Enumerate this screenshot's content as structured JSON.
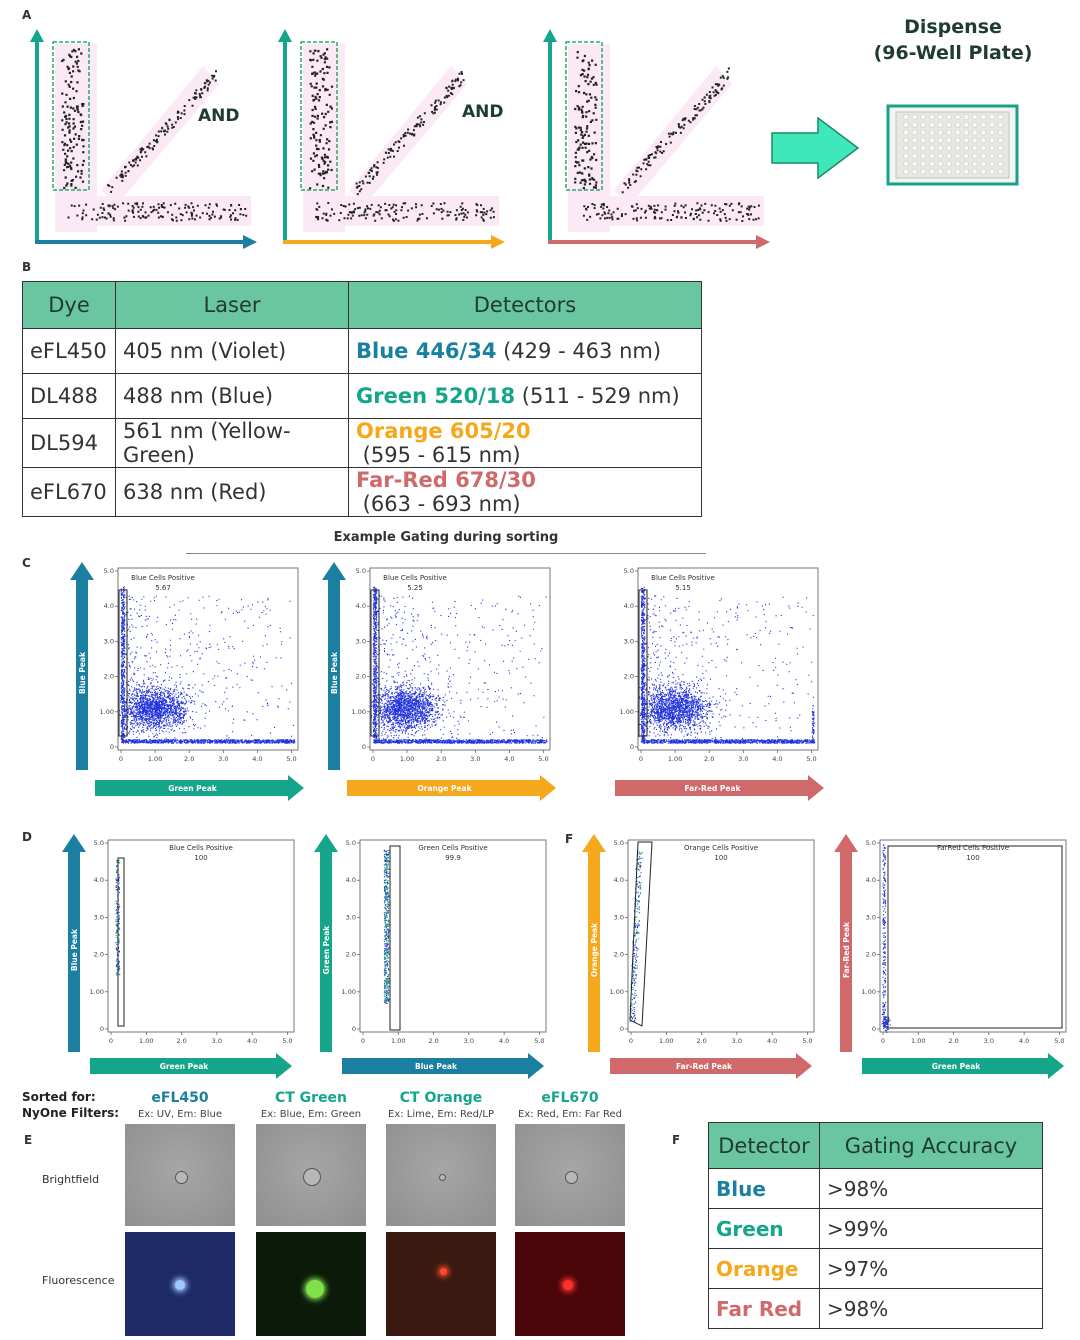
{
  "panel_a": {
    "letter": "A",
    "and_labels": [
      "AND",
      "AND"
    ],
    "dispense_line1": "Dispense",
    "dispense_line2": "(96-Well Plate)",
    "arrow_colors": {
      "blue": "#1a7fa0",
      "teal": "#14a58a",
      "orange": "#f5a81c",
      "red": "#d06a6a"
    }
  },
  "panel_b": {
    "letter": "B",
    "headers": [
      "Dye",
      "Laser",
      "Detectors"
    ],
    "rows": [
      {
        "dye": "eFL450",
        "laser": "405 nm (Violet)",
        "detector": "Blue 446/34",
        "range": " (429 - 463 nm)",
        "color": "#1a7fa0"
      },
      {
        "dye": "DL488",
        "laser": "488 nm (Blue)",
        "detector": "Green 520/18",
        "range": " (511 - 529 nm)",
        "color": "#14a58a"
      },
      {
        "dye": "DL594",
        "laser": "561 nm (Yellow-Green)",
        "detector": "Orange 605/20",
        "range": " (595 - 615 nm)",
        "color": "#f5a81c"
      },
      {
        "dye": "eFL670",
        "laser": "638 nm (Red)",
        "detector": "Far-Red 678/30",
        "range": " (663 - 693 nm)",
        "color": "#d06a6a"
      }
    ]
  },
  "panel_c": {
    "letter": "C",
    "title": "Example Gating during sorting",
    "plots": [
      {
        "gate_name": "Blue Cells Positive",
        "gate_value": "5.67",
        "ylabel": "Blue Peak",
        "xlabel": "Green Peak",
        "x_color": "#14a58a",
        "y_color": "#1a7fa0"
      },
      {
        "gate_name": "Blue Cells Positive",
        "gate_value": "5.25",
        "ylabel": "Blue Peak",
        "xlabel": "Orange Peak",
        "x_color": "#f5a81c",
        "y_color": "#1a7fa0"
      },
      {
        "gate_name": "Blue Cells Positive",
        "gate_value": "5.15",
        "ylabel": "",
        "xlabel": "Far-Red Peak",
        "x_color": "#d06a6a",
        "y_color": ""
      }
    ],
    "x_ticks": [
      "0",
      "1.00",
      "2.0",
      "3.0",
      "4.0",
      "5.0"
    ],
    "y_ticks": [
      "0",
      "1.00",
      "2.0",
      "3.0",
      "4.0",
      "5.0"
    ]
  },
  "panel_d": {
    "letter": "D",
    "letter_f": "F",
    "plots": [
      {
        "gate_name": "Blue Cells Positive",
        "gate_value": "100",
        "ylabel": "Blue Peak",
        "xlabel": "Green Peak",
        "x_color": "#14a58a",
        "y_color": "#1a7fa0"
      },
      {
        "gate_name": "Green Cells Positive",
        "gate_value": "99.9",
        "ylabel": "Green Peak",
        "xlabel": "Blue Peak",
        "x_color": "#1a7fa0",
        "y_color": "#14a58a"
      },
      {
        "gate_name": "Orange Cells Positive",
        "gate_value": "100",
        "ylabel": "Orange Peak",
        "xlabel": "Far-Red Peak",
        "x_color": "#d06a6a",
        "y_color": "#f5a81c"
      },
      {
        "gate_name": "FarRed Cells Positive",
        "gate_value": "100",
        "ylabel": "Far-Red Peak",
        "xlabel": "Green Peak",
        "x_color": "#14a58a",
        "y_color": "#d06a6a"
      }
    ]
  },
  "panel_e": {
    "letter": "E",
    "sorted_for": "Sorted for:",
    "nyone_filters": "NyOne Filters:",
    "row_brightfield": "Brightfield",
    "row_fluorescence": "Fluorescence",
    "channels": [
      {
        "name": "eFL450",
        "filters": "Ex: UV, Em: Blue",
        "color": "#1a7fa0",
        "fl_bg": "#1e2a66",
        "spot": "#9fc8ff"
      },
      {
        "name": "CT Green",
        "filters": "Ex: Blue, Em: Green",
        "color": "#14a58a",
        "fl_bg": "#0c1a0a",
        "spot": "#7fe04a"
      },
      {
        "name": "CT Orange",
        "filters": "Ex: Lime, Em: Red/LP",
        "color": "#14a58a",
        "fl_bg": "#3a1a10",
        "spot": "#ff4a2a"
      },
      {
        "name": "eFL670",
        "filters": "Ex: Red, Em: Far Red",
        "color": "#14a58a",
        "fl_bg": "#4a0608",
        "spot": "#ff3030"
      }
    ]
  },
  "panel_f": {
    "letter": "F",
    "headers": [
      "Detector",
      "Gating Accuracy"
    ],
    "rows": [
      {
        "detector": "Blue",
        "accuracy": ">98%",
        "color": "#1a7fa0"
      },
      {
        "detector": "Green",
        "accuracy": ">99%",
        "color": "#14a58a"
      },
      {
        "detector": "Orange",
        "accuracy": ">97%",
        "color": "#f5a81c"
      },
      {
        "detector": "Far Red",
        "accuracy": ">98%",
        "color": "#d06a6a"
      }
    ]
  }
}
